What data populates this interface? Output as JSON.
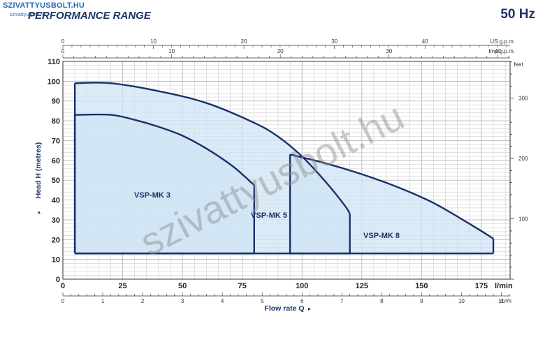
{
  "header": {
    "brand": "SZIVATTYUSBOLT.HU",
    "brand_sub": "szivattyusbolt.hu",
    "title": "PERFORMANCE RANGE",
    "frequency": "50 Hz"
  },
  "watermark": "szivattyusbolt.hu",
  "colors": {
    "curve": "#1b2f6b",
    "fill": "#cfe4f4",
    "grid": "#b9b9b9",
    "text": "#1b3566"
  },
  "chart_data": {
    "type": "area",
    "ylabel": "Head H (metres)",
    "xlabel": "Flow rate Q",
    "ylim": [
      0,
      110
    ],
    "xlim": [
      0,
      187
    ],
    "grid": true,
    "axes": {
      "bottom_lmin": {
        "unit": "l/min",
        "ticks": [
          0,
          25,
          50,
          75,
          100,
          125,
          150,
          175
        ]
      },
      "bottom_m3h": {
        "unit": "m³/h",
        "ticks": [
          0,
          1,
          2,
          3,
          4,
          5,
          6,
          7,
          8,
          9,
          10,
          11
        ]
      },
      "top_usgpm": {
        "unit": "US g.p.m.",
        "ticks": [
          0,
          10,
          20,
          30,
          40
        ]
      },
      "top_impgpm": {
        "unit": "Imp g.p.m.",
        "ticks": [
          0,
          10,
          20,
          30,
          40
        ]
      },
      "right_feet": {
        "unit": "feet",
        "ticks": [
          100,
          200,
          300
        ]
      },
      "left_m": {
        "ticks": [
          0,
          10,
          20,
          30,
          40,
          50,
          60,
          70,
          80,
          90,
          100,
          110
        ]
      }
    },
    "series": [
      {
        "name": "VSP-MK 3",
        "x": [
          5,
          20,
          30,
          40,
          50,
          60,
          70,
          75,
          80
        ],
        "y": [
          83,
          83,
          80.5,
          77,
          72.5,
          66,
          58,
          53,
          47.5
        ],
        "x_min": 5,
        "x_max": 80,
        "h_min": 13
      },
      {
        "name": "VSP-MK 5",
        "x": [
          5,
          20,
          40,
          60,
          80,
          90,
          100,
          110,
          118,
          120
        ],
        "y": [
          99,
          99,
          95,
          89,
          79,
          72,
          62,
          49,
          37,
          33
        ],
        "x_min": 5,
        "x_max": 120,
        "h_min": 13
      },
      {
        "name": "VSP-MK 8",
        "x": [
          95,
          110,
          125,
          140,
          155,
          170,
          180
        ],
        "y": [
          63,
          58.5,
          53,
          46.5,
          38.5,
          28,
          20.5
        ],
        "x_min": 95,
        "x_max": 180,
        "h_min": 13
      }
    ]
  }
}
